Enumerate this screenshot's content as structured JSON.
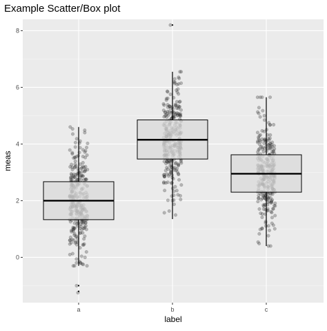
{
  "chart_data": {
    "type": "box",
    "title": "Example Scatter/Box plot",
    "xlabel": "label",
    "ylabel": "meas",
    "categories": [
      "a",
      "b",
      "c"
    ],
    "ylim": [
      -1.6,
      8.4
    ],
    "yticks": [
      0,
      2,
      4,
      6,
      8
    ],
    "yticklabels": [
      "0",
      "2",
      "4",
      "6",
      "8"
    ],
    "grid": true,
    "legend": "none",
    "colors": {
      "panel": "#ebebeb",
      "grid_major": "#ffffff",
      "grid_minor": "#f6f6f6",
      "box_fill": "#d9d9d9",
      "box_line": "#000000",
      "points": "#333333",
      "tick_text": "#4d4d4d"
    },
    "groups": [
      {
        "label": "a",
        "q1": 1.33,
        "median": 2.0,
        "q3": 2.67,
        "whisker_low": -0.3,
        "whisker_high": 4.6,
        "outliers": [
          -1.0,
          -1.2
        ],
        "jitter_mean": 2.0,
        "jitter_sd": 1.0,
        "jitter_n": 300,
        "seed": 11
      },
      {
        "label": "b",
        "q1": 3.47,
        "median": 4.15,
        "q3": 4.85,
        "whisker_low": 1.35,
        "whisker_high": 6.55,
        "outliers": [
          8.2
        ],
        "jitter_mean": 4.15,
        "jitter_sd": 1.0,
        "jitter_n": 300,
        "seed": 23
      },
      {
        "label": "c",
        "q1": 2.3,
        "median": 2.95,
        "q3": 3.62,
        "whisker_low": 0.4,
        "whisker_high": 5.65,
        "outliers": [],
        "jitter_mean": 2.95,
        "jitter_sd": 1.0,
        "jitter_n": 300,
        "seed": 37
      }
    ]
  }
}
